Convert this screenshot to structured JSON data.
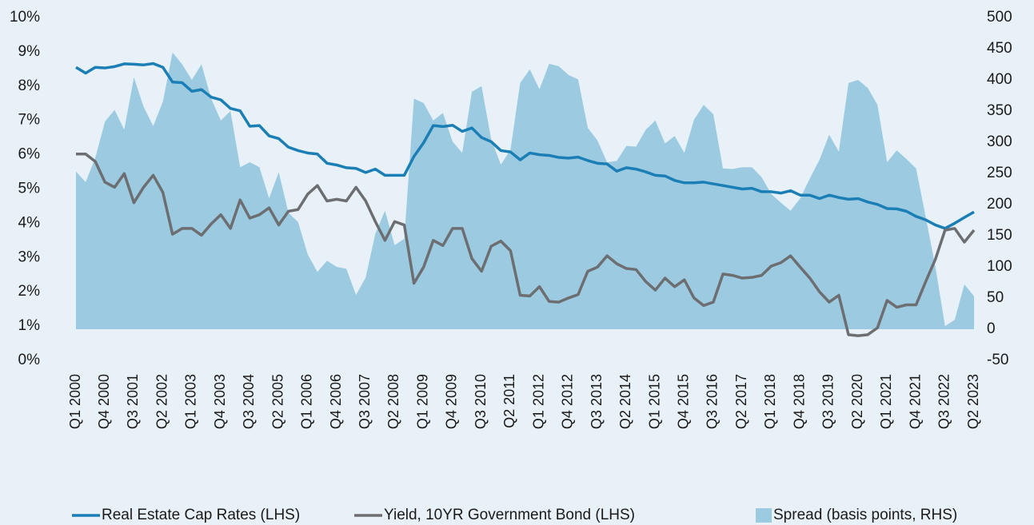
{
  "chart_data": {
    "type": "line",
    "categories": [
      "Q1 2000",
      null,
      null,
      "Q4 2000",
      null,
      null,
      "Q3 2001",
      null,
      null,
      "Q2 2002",
      null,
      null,
      "Q1 2003",
      null,
      null,
      "Q4 2003",
      null,
      null,
      "Q3 2004",
      null,
      null,
      "Q2 2005",
      null,
      null,
      "Q1 2006",
      null,
      null,
      "Q4 2006",
      null,
      null,
      "Q3 2007",
      null,
      null,
      "Q2 2008",
      null,
      null,
      "Q1 2009",
      null,
      null,
      "Q4 2009",
      null,
      null,
      "Q3 2010",
      null,
      null,
      "Q2 2011",
      null,
      null,
      "Q1 2012",
      null,
      null,
      "Q4 2012",
      null,
      null,
      "Q3 2013",
      null,
      null,
      "Q2 2014",
      null,
      null,
      "Q1 2015",
      null,
      null,
      "Q4 2015",
      null,
      null,
      "Q3 2016",
      null,
      null,
      "Q2 2017",
      null,
      null,
      "Q1 2018",
      null,
      null,
      "Q4 2018",
      null,
      null,
      "Q3 2019",
      null,
      null,
      "Q2 2020",
      null,
      null,
      "Q1 2021",
      null,
      null,
      "Q4 2021",
      null,
      null,
      "Q3 2022",
      null,
      null,
      "Q2 2023"
    ],
    "series": [
      {
        "name": "Real Estate Cap Rates (LHS)",
        "color": "#1b7fb6",
        "type": "line",
        "values": [
          8.55,
          8.38,
          8.55,
          8.53,
          8.57,
          8.65,
          8.64,
          8.62,
          8.66,
          8.55,
          8.12,
          8.1,
          7.85,
          7.9,
          7.68,
          7.6,
          7.35,
          7.28,
          6.83,
          6.85,
          6.55,
          6.47,
          6.22,
          6.12,
          6.05,
          6.02,
          5.75,
          5.7,
          5.62,
          5.6,
          5.48,
          5.58,
          5.4,
          5.4,
          5.4,
          5.95,
          6.35,
          6.85,
          6.82,
          6.86,
          6.68,
          6.78,
          6.5,
          6.38,
          6.12,
          6.08,
          5.85,
          6.05,
          6.0,
          5.98,
          5.92,
          5.9,
          5.93,
          5.83,
          5.75,
          5.73,
          5.52,
          5.62,
          5.58,
          5.5,
          5.4,
          5.38,
          5.25,
          5.18,
          5.18,
          5.2,
          5.15,
          5.1,
          5.05,
          5.0,
          5.02,
          4.92,
          4.92,
          4.88,
          4.95,
          4.82,
          4.82,
          4.72,
          4.82,
          4.75,
          4.7,
          4.72,
          4.62,
          4.55,
          4.43,
          4.42,
          4.35,
          4.2,
          4.1,
          3.95,
          3.85,
          4.0,
          4.17,
          4.33
        ]
      },
      {
        "name": "Yield, 10YR Government Bond (LHS)",
        "color": "#6d6e71",
        "type": "line",
        "values": [
          6.02,
          6.02,
          5.8,
          5.2,
          5.05,
          5.45,
          4.6,
          5.05,
          5.4,
          4.9,
          3.68,
          3.85,
          3.85,
          3.65,
          3.98,
          4.25,
          3.85,
          4.68,
          4.15,
          4.25,
          4.45,
          3.95,
          4.35,
          4.4,
          4.85,
          5.1,
          4.65,
          4.7,
          4.65,
          5.05,
          4.65,
          4.05,
          3.5,
          4.05,
          3.95,
          2.25,
          2.72,
          3.5,
          3.35,
          3.85,
          3.85,
          2.97,
          2.6,
          3.33,
          3.48,
          3.2,
          1.9,
          1.88,
          2.15,
          1.72,
          1.7,
          1.82,
          1.92,
          2.6,
          2.72,
          3.05,
          2.82,
          2.68,
          2.65,
          2.3,
          2.05,
          2.4,
          2.15,
          2.35,
          1.82,
          1.6,
          1.7,
          2.52,
          2.48,
          2.4,
          2.42,
          2.48,
          2.75,
          2.85,
          3.05,
          2.72,
          2.4,
          2.0,
          1.7,
          1.9,
          0.75,
          0.72,
          0.75,
          0.95,
          1.75,
          1.55,
          1.62,
          1.62,
          2.3,
          2.95,
          3.8,
          3.85,
          3.45,
          3.8
        ]
      },
      {
        "name": "Spread (basis points, RHS)",
        "color": "#9ccbe1",
        "type": "area",
        "axis": "y2",
        "values": [
          253,
          236,
          275,
          333,
          352,
          320,
          404,
          357,
          326,
          365,
          444,
          425,
          400,
          425,
          370,
          335,
          350,
          260,
          268,
          260,
          210,
          252,
          187,
          172,
          120,
          92,
          110,
          100,
          97,
          55,
          83,
          153,
          190,
          135,
          145,
          370,
          363,
          335,
          347,
          301,
          283,
          381,
          390,
          305,
          264,
          288,
          395,
          417,
          385,
          426,
          422,
          408,
          401,
          323,
          303,
          268,
          270,
          294,
          293,
          320,
          335,
          298,
          310,
          283,
          336,
          360,
          345,
          258,
          257,
          260,
          260,
          244,
          217,
          203,
          190,
          210,
          242,
          272,
          312,
          285,
          395,
          400,
          387,
          360,
          268,
          287,
          273,
          258,
          180,
          100,
          5,
          15,
          72,
          53
        ]
      }
    ],
    "ylim": [
      0,
      10
    ],
    "yticks": [
      {
        "value": 0,
        "label": "0%"
      },
      {
        "value": 1,
        "label": "1%"
      },
      {
        "value": 2,
        "label": "2%"
      },
      {
        "value": 3,
        "label": "3%"
      },
      {
        "value": 4,
        "label": "4%"
      },
      {
        "value": 5,
        "label": "5%"
      },
      {
        "value": 6,
        "label": "6%"
      },
      {
        "value": 7,
        "label": "7%"
      },
      {
        "value": 8,
        "label": "8%"
      },
      {
        "value": 9,
        "label": "9%"
      },
      {
        "value": 10,
        "label": "10%"
      }
    ],
    "y2lim": [
      -50,
      500
    ],
    "y2ticks": [
      -50,
      0,
      50,
      100,
      150,
      200,
      250,
      300,
      350,
      400,
      450,
      500
    ],
    "grid": false,
    "legend": "bottom"
  }
}
